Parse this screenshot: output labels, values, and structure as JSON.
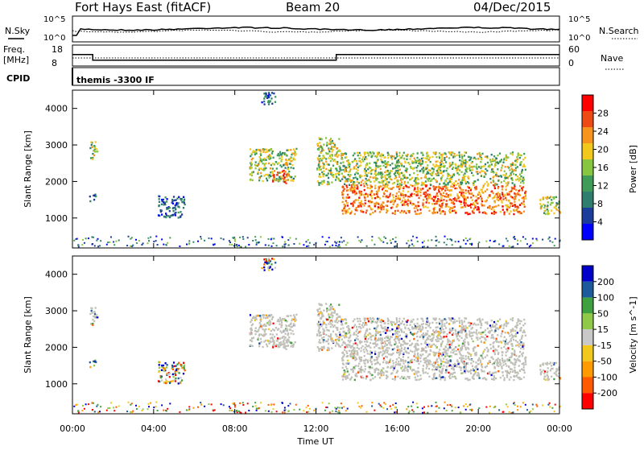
{
  "header": {
    "station": "Fort Hays East (fitACF)",
    "beam": "Beam 20",
    "date": "04/Dec/2015"
  },
  "noise_panel": {
    "left_label": "N.Sky",
    "right_label": "N.Search",
    "left_ticks": [
      "10^5",
      "10^0"
    ],
    "right_ticks": [
      "10^5",
      "10^0"
    ]
  },
  "freq_panel": {
    "left_label_1": "Freq.",
    "left_label_2": "[MHz]",
    "right_label": "Nave",
    "left_ticks": [
      "18",
      "8"
    ],
    "right_ticks": [
      "60",
      "0"
    ]
  },
  "cpid_panel": {
    "label": "CPID",
    "program": "themis -3300 IF"
  },
  "colors": {
    "power": [
      "#0000ff",
      "#1c3c9c",
      "#2e7d6e",
      "#3f9b58",
      "#86c640",
      "#f2c81c",
      "#f7941d",
      "#ee4b14",
      "#ff0000"
    ],
    "velocity": [
      "#ff0000",
      "#ff5a00",
      "#ff9a00",
      "#f2c81c",
      "#c8c8c8",
      "#90c848",
      "#3fa040",
      "#1c5a9c",
      "#0000c8"
    ],
    "ground_scatter": "#c0c0b8"
  },
  "chart_data": [
    {
      "type": "heatmap",
      "name": "power",
      "xlabel": "",
      "ylabel": "Slant Range [km]",
      "xlim_hours": [
        0,
        24
      ],
      "ylim_km": [
        180,
        4500
      ],
      "yticks": [
        "4000",
        "3000",
        "2000",
        "1000"
      ],
      "xticks": [
        "00:00",
        "04:00",
        "08:00",
        "12:00",
        "16:00",
        "20:00",
        "00:00"
      ],
      "colorbar_label": "Power [dB]",
      "colorbar_ticks": [
        "28",
        "24",
        "20",
        "16",
        "12",
        "8",
        "4"
      ],
      "echo_regions_approx": [
        {
          "t": [
            0.8,
            1.2
          ],
          "r": [
            2600,
            3100
          ],
          "level": "mid"
        },
        {
          "t": [
            0.8,
            1.2
          ],
          "r": [
            1450,
            1650
          ],
          "level": "low"
        },
        {
          "t": [
            4.2,
            5.5
          ],
          "r": [
            1000,
            1600
          ],
          "level": "low"
        },
        {
          "t": [
            8.7,
            11.0
          ],
          "r": [
            2000,
            2900
          ],
          "level": "mid"
        },
        {
          "t": [
            9.8,
            10.6
          ],
          "r": [
            1950,
            2300
          ],
          "level": "high"
        },
        {
          "t": [
            9.3,
            10.0
          ],
          "r": [
            4100,
            4500
          ],
          "level": "low"
        },
        {
          "t": [
            12.0,
            13.2
          ],
          "r": [
            1900,
            3200
          ],
          "level": "mid"
        },
        {
          "t": [
            13.2,
            22.3
          ],
          "r": [
            1100,
            1900
          ],
          "level": "high"
        },
        {
          "t": [
            13.2,
            22.3
          ],
          "r": [
            1900,
            2800
          ],
          "level": "mid"
        },
        {
          "t": [
            23.0,
            24.0
          ],
          "r": [
            1100,
            1600
          ],
          "level": "mid"
        }
      ]
    },
    {
      "type": "heatmap",
      "name": "velocity",
      "xlabel": "Time UT",
      "ylabel": "Slant Range [km]",
      "xlim_hours": [
        0,
        24
      ],
      "ylim_km": [
        180,
        4500
      ],
      "yticks": [
        "4000",
        "3000",
        "2000",
        "1000"
      ],
      "xticks": [
        "00:00",
        "04:00",
        "08:00",
        "12:00",
        "16:00",
        "20:00",
        "00:00"
      ],
      "colorbar_label": "Velocity [m s^-1]",
      "colorbar_ticks": [
        "200",
        "100",
        "50",
        "15",
        "-15",
        "-50",
        "-100",
        "-200"
      ]
    },
    {
      "type": "line",
      "name": "frequency",
      "ylim": [
        8,
        18
      ],
      "x_hours": [
        0,
        1.0,
        1.0,
        13.0,
        13.0,
        24
      ],
      "y_mhz": [
        13.5,
        13.5,
        10.8,
        10.8,
        13.5,
        13.5
      ]
    }
  ]
}
